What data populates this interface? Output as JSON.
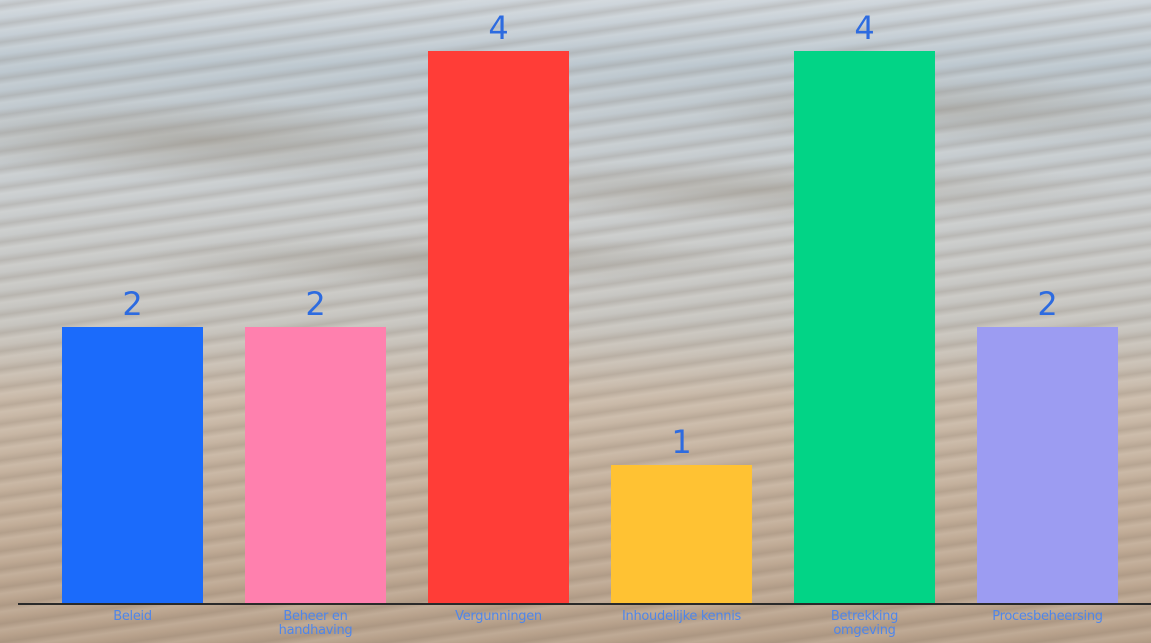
{
  "chart_data": {
    "type": "bar",
    "categories": [
      "Beleid",
      "Beheer en handhaving",
      "Vergunningen",
      "Inhoudelijke kennis",
      "Betrekking omgeving",
      "Procesbeheersing"
    ],
    "values": [
      2,
      2,
      4,
      1,
      4,
      2
    ],
    "colors": [
      "#1b6bfb",
      "#ff80ae",
      "#ff3d37",
      "#ffc233",
      "#02d486",
      "#9c9cf2"
    ],
    "ylim": [
      0,
      4
    ]
  }
}
